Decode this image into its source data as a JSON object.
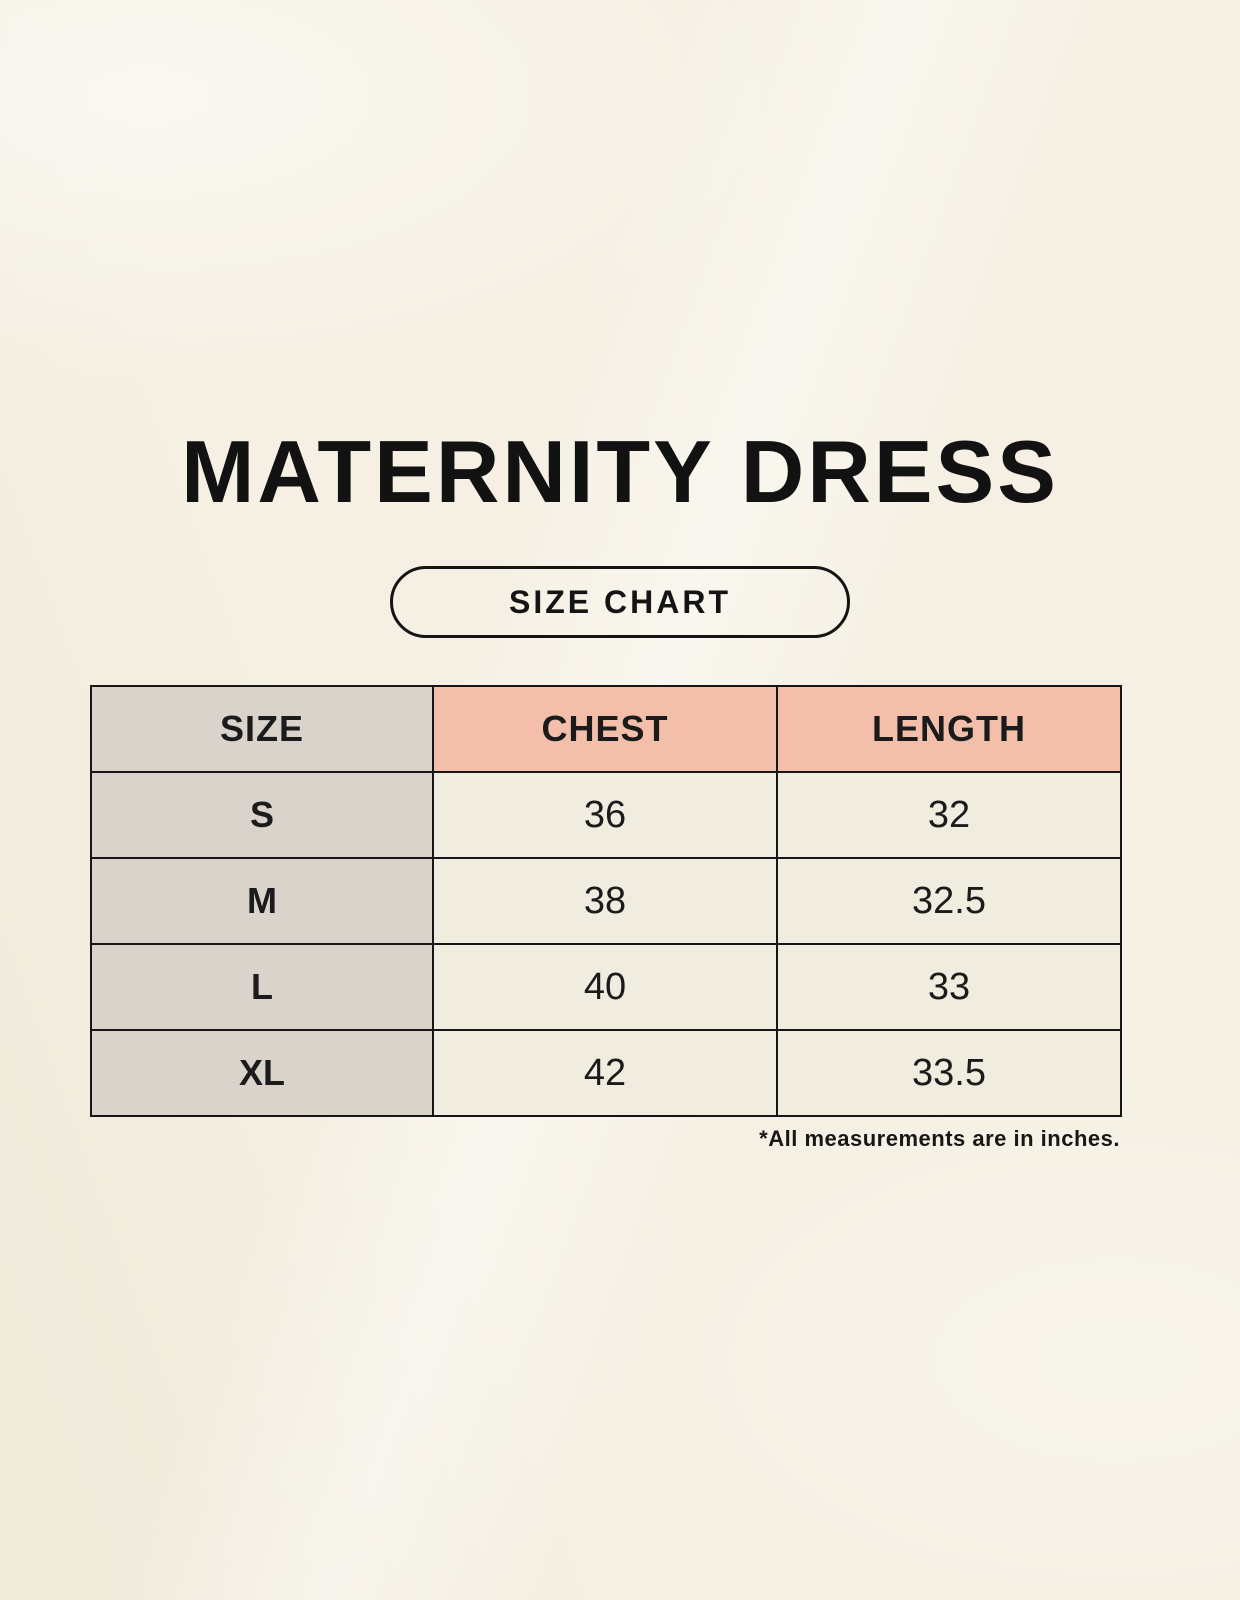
{
  "page": {
    "title": "MATERNITY DRESS",
    "badge_label": "SIZE CHART",
    "note": "*All measurements are in inches."
  },
  "colors": {
    "background": "#f5f0e3",
    "header_pink": "#f3bfab",
    "header_gray": "#dad3cb",
    "cell_cream": "#f1ece0",
    "border": "#161616"
  },
  "chart_data": {
    "type": "table",
    "title": "MATERNITY DRESS",
    "subtitle": "SIZE CHART",
    "columns": [
      "SIZE",
      "CHEST",
      "LENGTH"
    ],
    "rows": [
      {
        "size": "S",
        "chest": "36",
        "length": "32"
      },
      {
        "size": "M",
        "chest": "38",
        "length": "32.5"
      },
      {
        "size": "L",
        "chest": "40",
        "length": "33"
      },
      {
        "size": "XL",
        "chest": "42",
        "length": "33.5"
      }
    ],
    "units": "inches",
    "footnote": "*All measurements are in inches."
  }
}
